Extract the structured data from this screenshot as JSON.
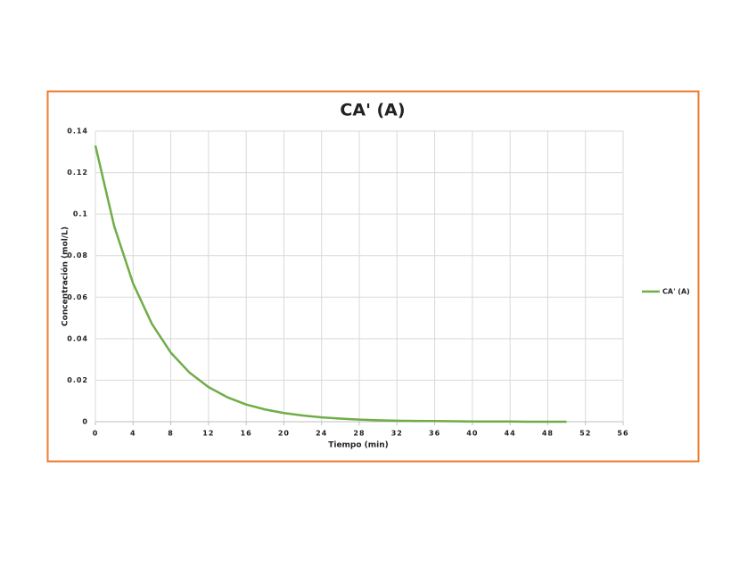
{
  "chart_data": {
    "type": "line",
    "title": "CA' (A)",
    "x_label": "Tiempo (min)",
    "y_label": "Concentración (mol/L)",
    "x": [
      0,
      2,
      4,
      6,
      8,
      10,
      12,
      14,
      16,
      18,
      20,
      22,
      24,
      26,
      28,
      30,
      32,
      34,
      36,
      38,
      40,
      42,
      44,
      46,
      48,
      50
    ],
    "series": [
      {
        "name": "CA' (A)",
        "color": "#70ad47",
        "values": [
          0.133,
          0.0941,
          0.0666,
          0.0471,
          0.0333,
          0.0236,
          0.0167,
          0.0118,
          0.0083,
          0.0059,
          0.0042,
          0.003,
          0.0021,
          0.0015,
          0.001,
          0.0007,
          0.0005,
          0.0004,
          0.0003,
          0.0002,
          0.0001,
          0.0001,
          0.0001,
          0,
          0,
          0
        ]
      }
    ],
    "xlim": [
      0,
      56
    ],
    "xticks": [
      0,
      4,
      8,
      12,
      16,
      20,
      24,
      28,
      32,
      36,
      40,
      44,
      48,
      52,
      56
    ],
    "ylim": [
      0,
      0.14
    ],
    "yticks": [
      0,
      0.02,
      0.04,
      0.06,
      0.08,
      0.1,
      0.12,
      0.14
    ],
    "grid": true,
    "legend": "right"
  }
}
